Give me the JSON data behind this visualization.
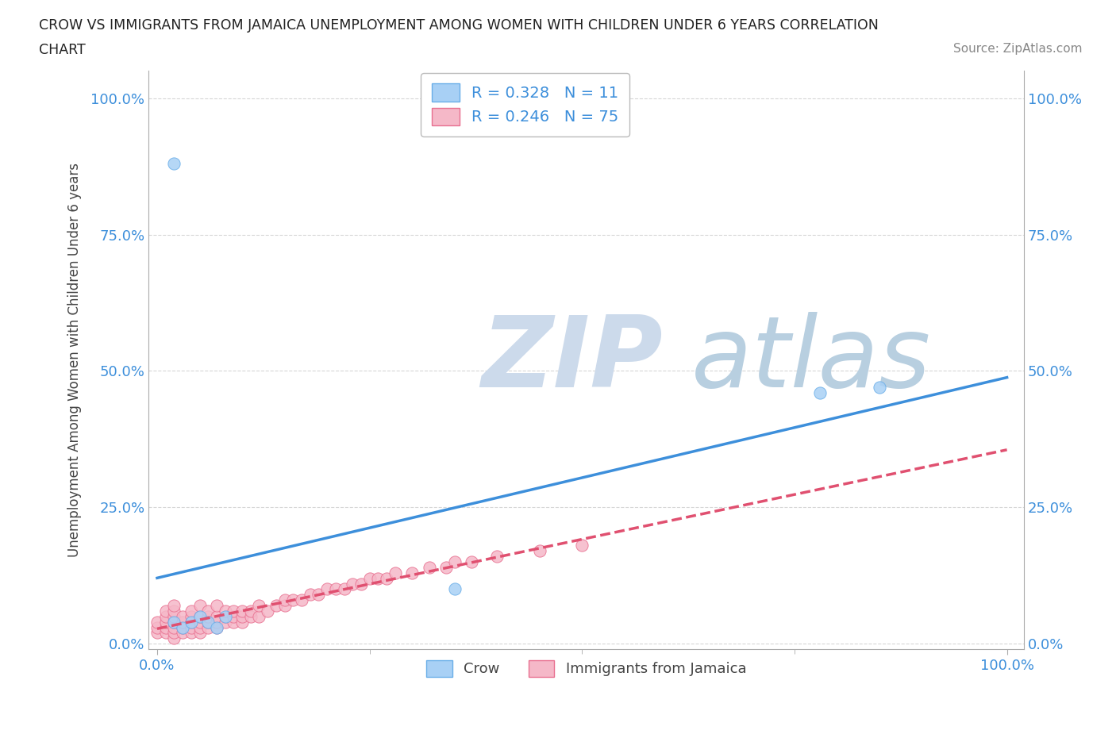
{
  "title_line1": "CROW VS IMMIGRANTS FROM JAMAICA UNEMPLOYMENT AMONG WOMEN WITH CHILDREN UNDER 6 YEARS CORRELATION",
  "title_line2": "CHART",
  "source": "Source: ZipAtlas.com",
  "ylabel": "Unemployment Among Women with Children Under 6 years",
  "xlabel": "",
  "xlim": [
    -0.01,
    1.02
  ],
  "ylim": [
    -0.01,
    1.05
  ],
  "yticks": [
    0,
    0.25,
    0.5,
    0.75,
    1.0
  ],
  "ytick_labels": [
    "0.0%",
    "25.0%",
    "50.0%",
    "75.0%",
    "100.0%"
  ],
  "xtick_labels": [
    "0.0%",
    "100.0%"
  ],
  "xtick_positions": [
    0.0,
    1.0
  ],
  "crow_R": 0.328,
  "crow_N": 11,
  "jamaica_R": 0.246,
  "jamaica_N": 75,
  "crow_color": "#a8d0f5",
  "crow_edge_color": "#6aaee8",
  "crow_line_color": "#3d8fdb",
  "jamaica_color": "#f5b8c8",
  "jamaica_edge_color": "#e87090",
  "jamaica_line_color": "#e05070",
  "tick_label_color": "#3d8fdb",
  "watermark_zip": "ZIP",
  "watermark_atlas": "atlas",
  "watermark_color_zip": "#c5d8ec",
  "watermark_color_atlas": "#b0cce0",
  "background_color": "#ffffff",
  "crow_x": [
    0.02,
    0.02,
    0.03,
    0.04,
    0.05,
    0.06,
    0.07,
    0.08,
    0.35,
    0.78,
    0.85
  ],
  "crow_y": [
    0.88,
    0.04,
    0.03,
    0.04,
    0.05,
    0.04,
    0.03,
    0.05,
    0.1,
    0.46,
    0.47
  ],
  "jamaica_x": [
    0.0,
    0.0,
    0.0,
    0.01,
    0.01,
    0.01,
    0.01,
    0.01,
    0.02,
    0.02,
    0.02,
    0.02,
    0.02,
    0.02,
    0.02,
    0.03,
    0.03,
    0.03,
    0.03,
    0.04,
    0.04,
    0.04,
    0.04,
    0.04,
    0.05,
    0.05,
    0.05,
    0.05,
    0.05,
    0.06,
    0.06,
    0.06,
    0.06,
    0.07,
    0.07,
    0.07,
    0.07,
    0.08,
    0.08,
    0.08,
    0.09,
    0.09,
    0.09,
    0.1,
    0.1,
    0.1,
    0.11,
    0.11,
    0.12,
    0.12,
    0.13,
    0.14,
    0.15,
    0.15,
    0.16,
    0.17,
    0.18,
    0.19,
    0.2,
    0.21,
    0.22,
    0.23,
    0.24,
    0.25,
    0.26,
    0.27,
    0.28,
    0.3,
    0.32,
    0.34,
    0.35,
    0.37,
    0.4,
    0.45,
    0.5
  ],
  "jamaica_y": [
    0.02,
    0.03,
    0.04,
    0.02,
    0.03,
    0.04,
    0.05,
    0.06,
    0.01,
    0.02,
    0.03,
    0.04,
    0.05,
    0.06,
    0.07,
    0.02,
    0.03,
    0.04,
    0.05,
    0.02,
    0.03,
    0.04,
    0.05,
    0.06,
    0.02,
    0.03,
    0.04,
    0.05,
    0.07,
    0.03,
    0.04,
    0.05,
    0.06,
    0.03,
    0.04,
    0.05,
    0.07,
    0.04,
    0.05,
    0.06,
    0.04,
    0.05,
    0.06,
    0.04,
    0.05,
    0.06,
    0.05,
    0.06,
    0.05,
    0.07,
    0.06,
    0.07,
    0.07,
    0.08,
    0.08,
    0.08,
    0.09,
    0.09,
    0.1,
    0.1,
    0.1,
    0.11,
    0.11,
    0.12,
    0.12,
    0.12,
    0.13,
    0.13,
    0.14,
    0.14,
    0.15,
    0.15,
    0.16,
    0.17,
    0.18
  ],
  "grid_color": "#cccccc",
  "spine_color": "#aaaaaa",
  "legend_box_color": "#3d8fdb",
  "legend_fontsize": 14,
  "scatter_size": 120
}
